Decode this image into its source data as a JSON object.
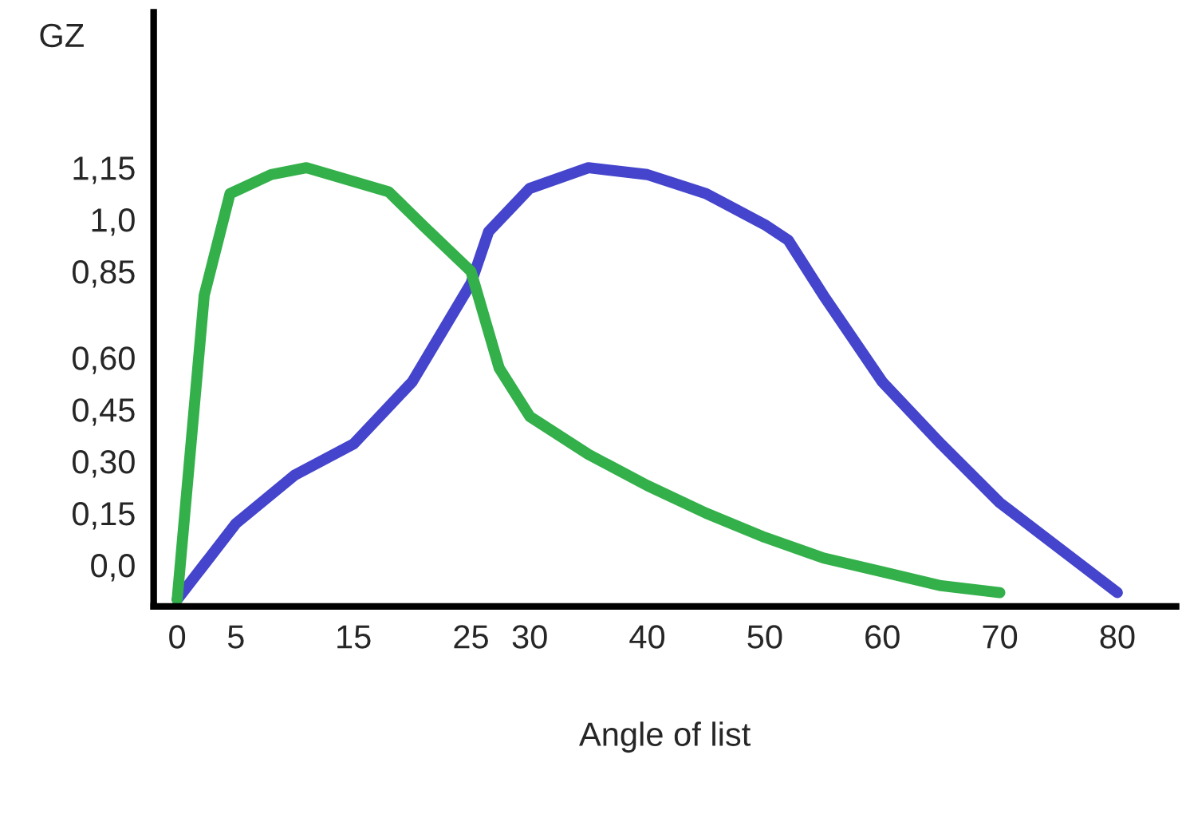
{
  "chart_data": {
    "type": "line",
    "xlabel": "Angle of list",
    "ylabel": "GZ",
    "xlim": [
      -2,
      85
    ],
    "ylim": [
      -0.12,
      1.6
    ],
    "xticks": [
      0,
      5,
      15,
      25,
      30,
      40,
      50,
      60,
      70,
      80
    ],
    "yticks": [
      {
        "value": 0.0,
        "label": "0,0"
      },
      {
        "value": 0.15,
        "label": "0,15"
      },
      {
        "value": 0.3,
        "label": "0,30"
      },
      {
        "value": 0.45,
        "label": "0,45"
      },
      {
        "value": 0.6,
        "label": "0,60"
      },
      {
        "value": 0.85,
        "label": "0,85"
      },
      {
        "value": 1.0,
        "label": "1,0"
      },
      {
        "value": 1.15,
        "label": "1,15"
      }
    ],
    "grid": false,
    "legend": false,
    "marker": "none",
    "line_style": "solid",
    "series": [
      {
        "color": "#4444cc",
        "x": [
          0,
          5,
          10,
          15,
          20,
          25,
          26.5,
          30,
          35,
          40,
          45,
          50,
          52,
          55,
          60,
          65,
          70,
          75,
          80
        ],
        "values": [
          -0.1,
          0.12,
          0.26,
          0.35,
          0.53,
          0.815,
          0.965,
          1.09,
          1.15,
          1.13,
          1.075,
          0.985,
          0.94,
          0.78,
          0.53,
          0.35,
          0.18,
          0.05,
          -0.08
        ]
      },
      {
        "color": "#33b04a",
        "x": [
          0,
          2.3,
          4.5,
          8,
          11,
          18,
          21,
          25,
          27.4,
          30,
          35,
          40,
          45,
          50,
          55,
          60,
          65,
          70
        ],
        "values": [
          -0.1,
          0.78,
          1.075,
          1.13,
          1.15,
          1.08,
          0.98,
          0.85,
          0.57,
          0.43,
          0.32,
          0.23,
          0.15,
          0.08,
          0.02,
          -0.02,
          -0.06,
          -0.08
        ]
      }
    ]
  }
}
